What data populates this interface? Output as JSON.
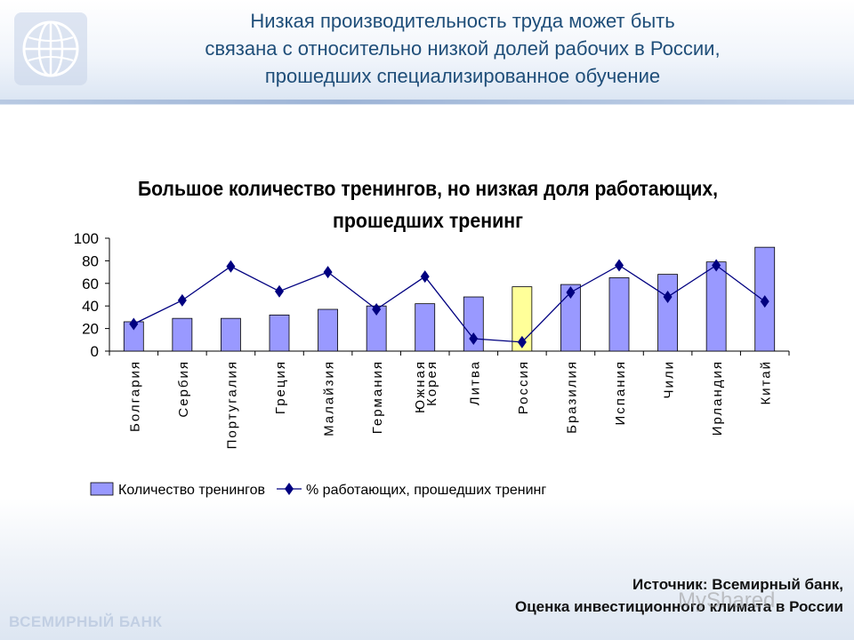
{
  "slide": {
    "title_lines": [
      "Низкая производительность труда может быть",
      "связана с относительно низкой долей рабочих в России,",
      "прошедших специализированное обучение"
    ],
    "source_lines": [
      "Источник: Всемирный банк,",
      "Оценка инвестиционного климата в России"
    ],
    "footer_logo": "ВСЕМИРНЫЙ БАНК",
    "watermark": "MyShared",
    "colors": {
      "title": "#1f4e79",
      "header_band": "#d9e4f2"
    }
  },
  "chart_data": {
    "type": "bar",
    "title_lines": [
      "Большое количество тренингов, но низкая доля работающих,",
      "прошедших тренинг"
    ],
    "categories": [
      "Болгария",
      "Сербия",
      "Португалия",
      "Греция",
      "Малайзия",
      "Германия",
      "Южная Корея",
      "Литва",
      "Россия",
      "Бразилия",
      "Испания",
      "Чили",
      "Ирландия",
      "Китай"
    ],
    "category_label_lines": [
      [
        "Болгария"
      ],
      [
        "Сербия"
      ],
      [
        "Португалия"
      ],
      [
        "Греция"
      ],
      [
        "Малайзия"
      ],
      [
        "Германия"
      ],
      [
        "Южная",
        "Корея"
      ],
      [
        "Литва"
      ],
      [
        "Россия"
      ],
      [
        "Бразилия"
      ],
      [
        "Испания"
      ],
      [
        "Чили"
      ],
      [
        "Ирландия"
      ],
      [
        "Китай"
      ]
    ],
    "series": [
      {
        "name": "Количество тренингов",
        "type": "bar",
        "color": "#9999ff",
        "highlight_color": "#ffff99",
        "highlight_category": "Россия",
        "values": [
          26,
          29,
          29,
          32,
          37,
          40,
          42,
          48,
          57,
          59,
          65,
          68,
          79,
          92
        ]
      },
      {
        "name": "% работающих, прошедших тренинг",
        "type": "line",
        "color": "#000080",
        "values": [
          24,
          45,
          75,
          53,
          70,
          37,
          66,
          11,
          8,
          52,
          76,
          48,
          76,
          44
        ]
      }
    ],
    "yticks": [
      0,
      20,
      40,
      60,
      80,
      100
    ],
    "ylim": [
      0,
      100
    ],
    "grid": false,
    "legend_position": "bottom"
  }
}
